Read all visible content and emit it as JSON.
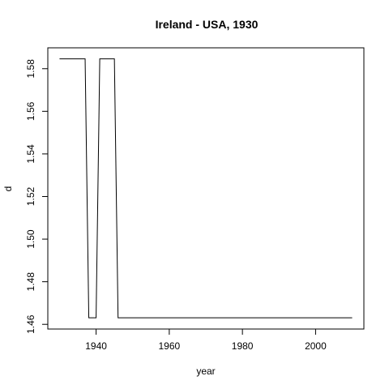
{
  "chart_data": {
    "type": "line",
    "title": "Ireland - USA, 1930",
    "xlabel": "year",
    "ylabel": "d",
    "xlim": [
      1926.8,
      2013.2
    ],
    "ylim": [
      1.4578,
      1.5898
    ],
    "x_ticks": [
      1940,
      1960,
      1980,
      2000
    ],
    "y_ticks": [
      1.46,
      1.48,
      1.5,
      1.52,
      1.54,
      1.56,
      1.58
    ],
    "x_tick_labels": [
      "1940",
      "1960",
      "1980",
      "2000"
    ],
    "y_tick_labels": [
      "1.46",
      "1.48",
      "1.50",
      "1.52",
      "1.54",
      "1.56",
      "1.58"
    ],
    "grid": false,
    "series": [
      {
        "x": [
          1930,
          1937,
          1938,
          1940,
          1941,
          1945,
          1946,
          2010
        ],
        "values": [
          1.5846,
          1.5846,
          1.4631,
          1.4631,
          1.5846,
          1.5846,
          1.4631,
          1.4631
        ]
      }
    ],
    "colors": {
      "line": "#000000",
      "axes": "#000000",
      "background": "#ffffff"
    }
  }
}
